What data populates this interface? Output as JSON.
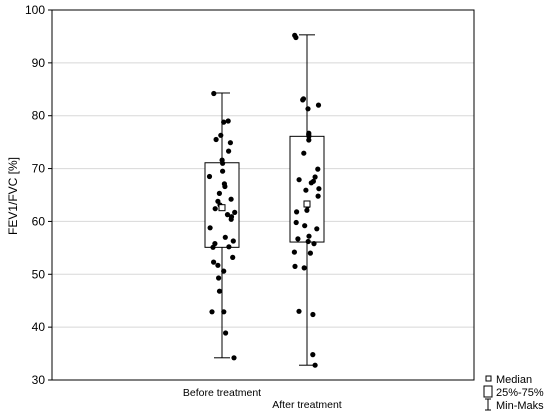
{
  "chart_data": {
    "type": "boxplot",
    "ylabel": "FEV1/FVC [%]",
    "ylim": [
      30,
      100
    ],
    "yticks": [
      30,
      40,
      50,
      60,
      70,
      80,
      90,
      100
    ],
    "grid": true,
    "legend_position": "bottom-right",
    "legend": [
      {
        "label": "Median",
        "symbol": "small-square"
      },
      {
        "label": "25%-75%",
        "symbol": "box"
      },
      {
        "label": "Min-Maks",
        "symbol": "whisker"
      }
    ],
    "series": [
      {
        "category": "Before treatment",
        "min": 34.2,
        "q1": 55.1,
        "median": 62.6,
        "q3": 71.1,
        "max": 84.3,
        "points": [
          84.2,
          79.0,
          78.8,
          76.3,
          75.5,
          74.9,
          73.3,
          71.6,
          71.0,
          69.5,
          68.5,
          67.1,
          66.6,
          65.3,
          64.2,
          63.8,
          63.1,
          62.4,
          61.7,
          61.3,
          60.9,
          60.4,
          58.8,
          57.0,
          56.3,
          55.8,
          55.2,
          55.1,
          53.2,
          52.3,
          51.7,
          50.6,
          49.3,
          46.8,
          42.9,
          42.9,
          38.9,
          34.2
        ]
      },
      {
        "category": "After treatment",
        "min": 32.8,
        "q1": 56.1,
        "median": 63.3,
        "q3": 76.1,
        "max": 95.3,
        "points": [
          95.2,
          94.8,
          83.2,
          83.0,
          82.0,
          81.3,
          76.7,
          76.4,
          76.1,
          75.4,
          72.9,
          69.9,
          68.4,
          67.9,
          67.6,
          67.3,
          66.2,
          65.9,
          64.8,
          63.3,
          62.9,
          62.1,
          61.8,
          59.8,
          59.2,
          58.6,
          57.2,
          56.7,
          56.2,
          55.8,
          54.2,
          54.0,
          51.5,
          51.2,
          43.0,
          42.4,
          34.8,
          32.8
        ]
      }
    ]
  }
}
